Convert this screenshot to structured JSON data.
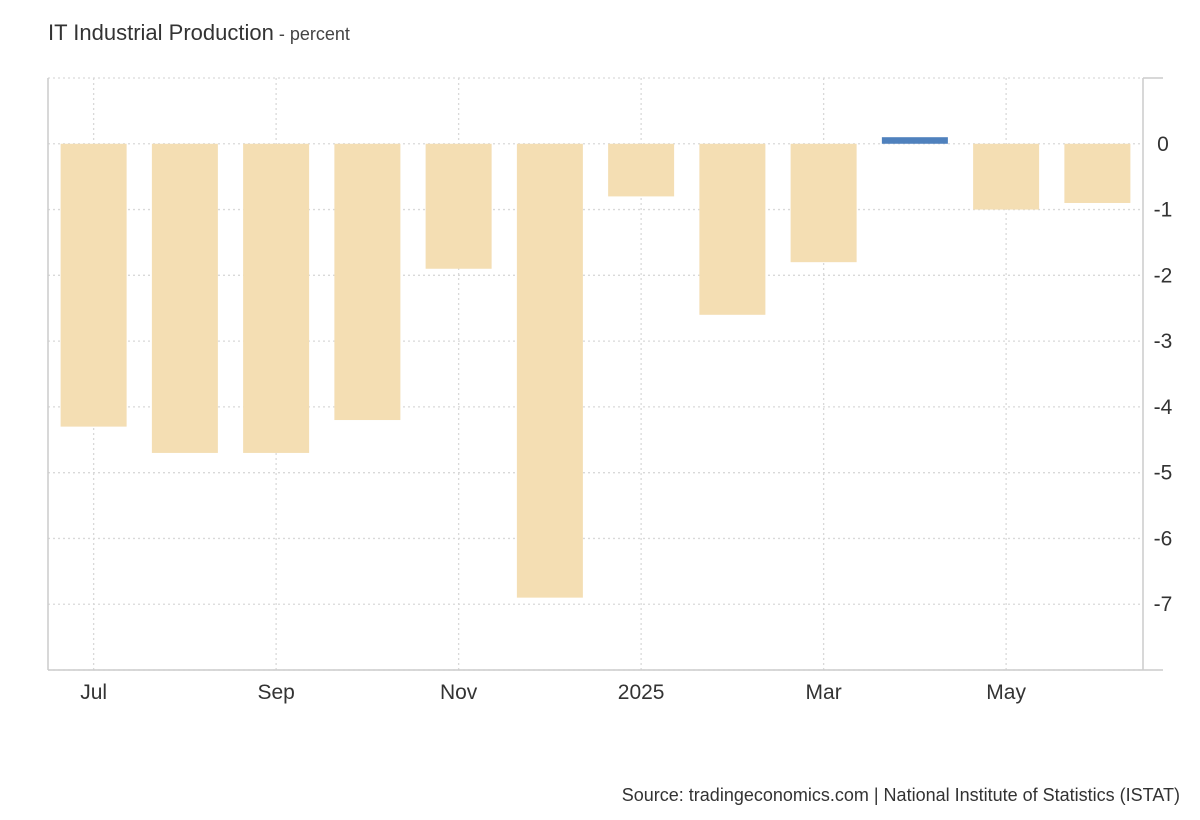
{
  "title": "IT Industrial Production",
  "title_suffix": " - percent",
  "source": "Source: tradingeconomics.com | National Institute of Statistics (ISTAT)",
  "chart_data": {
    "type": "bar",
    "categories": [
      "Jul 2024",
      "Aug 2024",
      "Sep 2024",
      "Oct 2024",
      "Nov 2024",
      "Dec 2024",
      "Jan 2025",
      "Feb 2025",
      "Mar 2025",
      "Apr 2025",
      "May 2025",
      "Jun 2025"
    ],
    "values": [
      -4.3,
      -4.7,
      -4.7,
      -4.2,
      -1.9,
      -6.9,
      -0.8,
      -2.6,
      -1.8,
      0.1,
      -1.0,
      -0.9
    ],
    "x_tick_labels": [
      "Jul",
      "Sep",
      "Nov",
      "2025",
      "Mar",
      "May"
    ],
    "x_tick_indices": [
      0,
      2,
      4,
      6,
      8,
      10
    ],
    "y_ticks": [
      0,
      -1,
      -2,
      -3,
      -4,
      -5,
      -6,
      -7
    ],
    "ylim": [
      -8,
      1
    ],
    "axis_side": "right",
    "grid": true,
    "colors": {
      "negative": "#f4deb3",
      "positive": "#4f81bd",
      "grid": "#d9d9d9",
      "axis": "#cccccc"
    }
  }
}
